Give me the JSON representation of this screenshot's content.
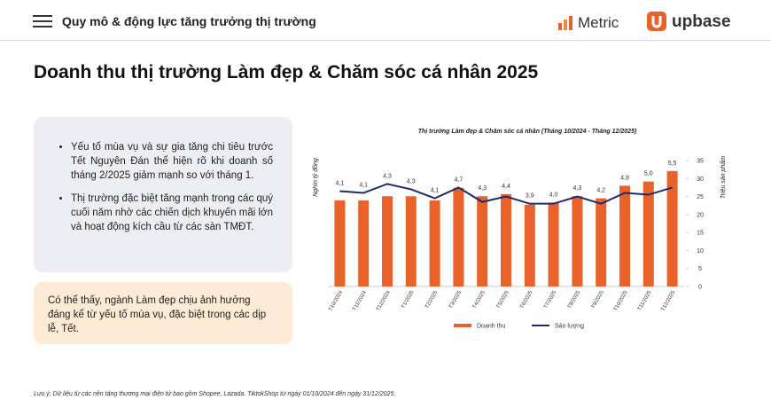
{
  "header": {
    "title": "Quy mô & động lực tăng trưởng thị trường",
    "brand_1": "Metric",
    "brand_2": "upbase"
  },
  "page_title": "Doanh thu thị trường Làm đẹp & Chăm sóc cá nhân 2025",
  "bullets": [
    "Yếu tố mùa vụ và sự gia tăng chi tiêu trước Tết Nguyên Đán thể hiện rõ khi doanh số tháng 2/2025 giảm mạnh so với tháng 1.",
    "Thị trường đặc biệt tăng mạnh trong các quý cuối năm nhờ các chiến dịch khuyến mãi lớn và hoạt động kích cầu từ các sàn TMĐT."
  ],
  "note_box": "Có thể thấy, ngành Làm đẹp chịu ảnh hưởng đáng kể từ yếu tố mùa vụ, đặc biệt trong các dịp lễ, Tết.",
  "footnote": "Lưu ý: Dữ liệu từ các nền tảng thương mại điện tử bao gồm Shopee, Lazada, TiktokShop từ ngày 01/10/2024 đến ngày 31/12/2025.",
  "chart_data": {
    "type": "bar",
    "title": "Thị trường Làm đẹp & Chăm sóc cá nhân (Tháng 10/2024 - Tháng 12/2025)",
    "y_label": "Nghìn tỷ đồng",
    "y2_label": "Triệu sản phẩm",
    "categories": [
      "T10/2024",
      "T11/2024",
      "T12/2024",
      "T1/2025",
      "T2/2025",
      "T3/2025",
      "T4/2025",
      "T5/2025",
      "T6/2025",
      "T7/2025",
      "T8/2025",
      "T9/2025",
      "T10/2025",
      "T11/2025",
      "T12/2025"
    ],
    "ylim": [
      0,
      6
    ],
    "y2lim": [
      0,
      35
    ],
    "y2ticks": [
      0,
      5,
      10,
      15,
      20,
      25,
      30,
      35
    ],
    "series": [
      {
        "name": "Doanh thu",
        "type": "bar",
        "color": "#e8622a",
        "values": [
          4.1,
          4.1,
          4.3,
          4.3,
          4.1,
          4.7,
          4.3,
          4.4,
          3.9,
          4.0,
          4.3,
          4.2,
          4.8,
          5.0,
          5.5
        ],
        "value_labels": [
          "4,1",
          "4,1",
          "4,3",
          "4,3",
          "4,1",
          "4,7",
          "4,3",
          "4,4",
          "3,9",
          "4,0",
          "4,3",
          "4,2",
          "4,8",
          "5,0",
          "5,5"
        ]
      },
      {
        "name": "Sản lượng",
        "type": "line",
        "axis": "y2",
        "color": "#1f2a6b",
        "values": [
          26.5,
          26,
          28.5,
          27,
          24.5,
          27.5,
          23.5,
          25,
          23,
          23,
          25,
          23,
          26,
          25.5,
          27.5
        ]
      }
    ]
  }
}
